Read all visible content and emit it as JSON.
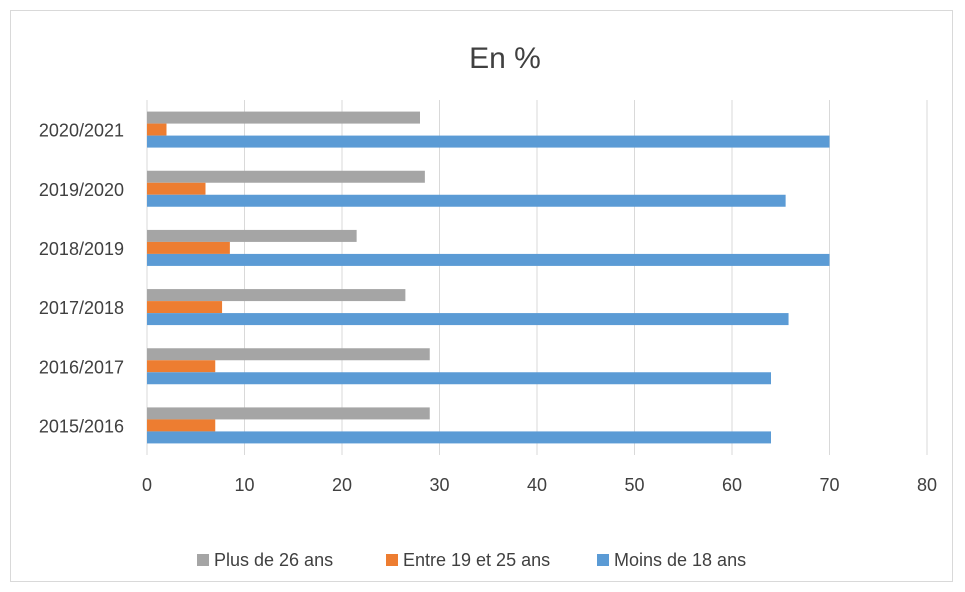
{
  "chart_data": {
    "type": "bar",
    "orientation": "horizontal",
    "title": "En %",
    "categories": [
      "2015/2016",
      "2016/2017",
      "2017/2018",
      "2018/2019",
      "2019/2020",
      "2020/2021"
    ],
    "series": [
      {
        "name": "Plus de 26 ans",
        "color": "#a5a5a5",
        "values": [
          29,
          29,
          26.5,
          21.5,
          28.5,
          28
        ]
      },
      {
        "name": "Entre 19 et 25 ans",
        "color": "#ed7d31",
        "values": [
          7,
          7,
          7.7,
          8.5,
          6,
          2
        ]
      },
      {
        "name": "Moins de 18 ans",
        "color": "#5b9bd5",
        "values": [
          64,
          64,
          65.8,
          70,
          65.5,
          70
        ]
      }
    ],
    "xlim": [
      0,
      80
    ],
    "xticks": [
      "0",
      "10",
      "20",
      "30",
      "40",
      "50",
      "60",
      "70",
      "80"
    ],
    "grid": true,
    "legend_position": "bottom"
  }
}
